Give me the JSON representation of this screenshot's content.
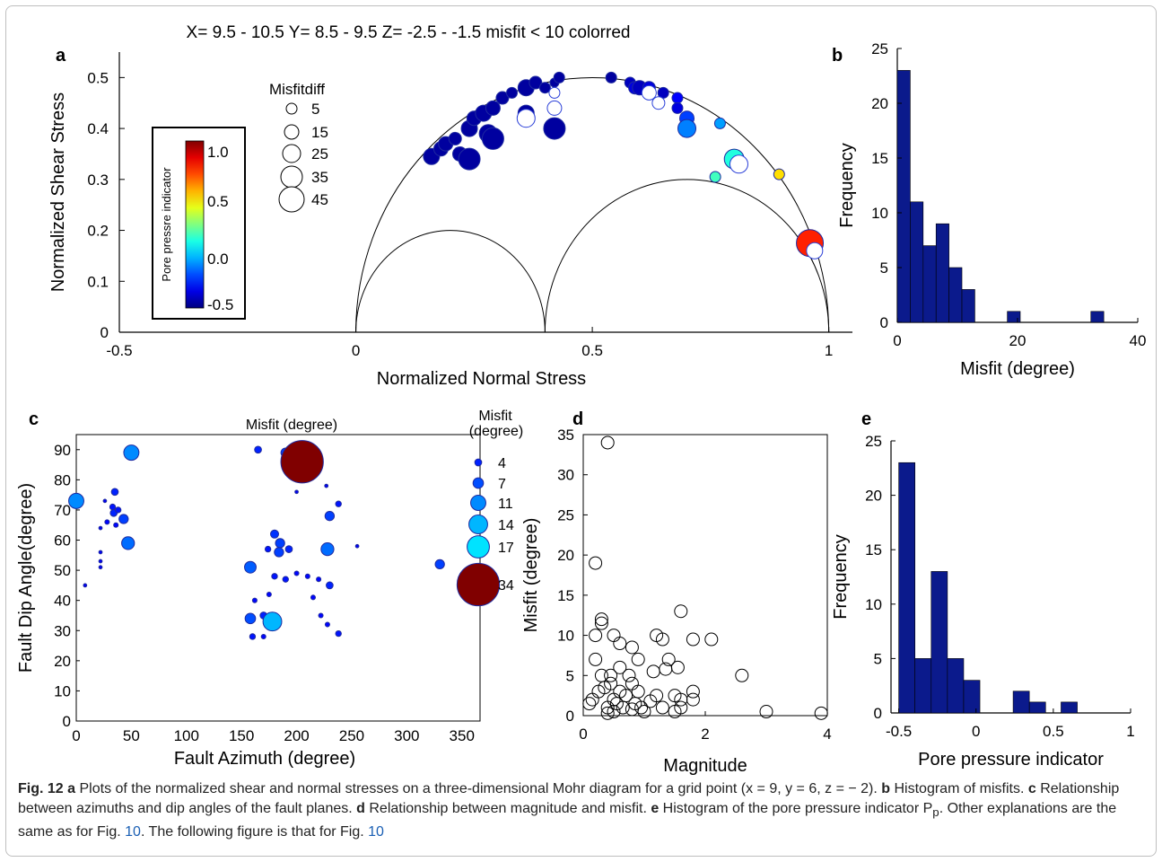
{
  "figure": {
    "header": "X= 9.5 - 10.5 Y= 8.5 - 9.5 Z= -2.5 - -1.5  misfit < 10 colorred",
    "caption": {
      "label": "Fig. 12",
      "parts": [
        {
          "b": "a",
          "t": " Plots of the normalized shear and normal stresses on a three-dimensional Mohr diagram for a grid point (x = 9, y = 6, z = − 2). "
        },
        {
          "b": "b",
          "t": " Histogram of misfits. "
        },
        {
          "b": "c",
          "t": " Relationship between azimuths and dip angles of the fault planes. "
        },
        {
          "b": "d",
          "t": " Relationship between magnitude and misfit. "
        },
        {
          "b": "e",
          "t": " Histogram of the pore pressure indicator P"
        }
      ],
      "sub": "p",
      "tail1": ". Other explanations are the same as for Fig. ",
      "ref1": "10",
      "tail2": ". The following figure is that for Fig. ",
      "ref2": "10"
    }
  },
  "chart_data": [
    {
      "panel": "a",
      "type": "scatter",
      "xlabel": "Normalized Normal Stress",
      "ylabel": "Normalized Shear Stress",
      "xlim": [
        -0.5,
        1.05
      ],
      "ylim": [
        0,
        0.55
      ],
      "xticks": [
        -0.5,
        0,
        0.5,
        1
      ],
      "xtick_labels": [
        "-0.5",
        "0",
        "0.5",
        "1"
      ],
      "yticks": [
        0,
        0.1,
        0.2,
        0.3,
        0.4,
        0.5
      ],
      "ytick_labels": [
        "0",
        "0.1",
        "0.2",
        "0.3",
        "0.4",
        "0.5"
      ],
      "circles": [
        {
          "center": 0.5,
          "radius": 0.5
        },
        {
          "center": 0.2,
          "radius": 0.2
        },
        {
          "center": 0.7,
          "radius": 0.3
        }
      ],
      "colorbar": {
        "label": "Pore pressre indicator",
        "ticks": [
          "1.0",
          "0.5",
          "0.0",
          "-0.5"
        ],
        "range": [
          -0.5,
          1.1
        ]
      },
      "size_legend": {
        "title": "Misfitdiff",
        "labels": [
          "5",
          "15",
          "25",
          "35",
          "45"
        ]
      },
      "points": [
        {
          "x": 0.16,
          "y": 0.345,
          "s": 9,
          "c": -0.45
        },
        {
          "x": 0.18,
          "y": 0.36,
          "s": 8,
          "c": -0.45
        },
        {
          "x": 0.19,
          "y": 0.37,
          "s": 8,
          "c": -0.45
        },
        {
          "x": 0.21,
          "y": 0.38,
          "s": 7,
          "c": -0.45
        },
        {
          "x": 0.22,
          "y": 0.35,
          "s": 8,
          "c": -0.45
        },
        {
          "x": 0.24,
          "y": 0.34,
          "s": 12,
          "c": -0.45
        },
        {
          "x": 0.24,
          "y": 0.4,
          "s": 9,
          "c": -0.45
        },
        {
          "x": 0.25,
          "y": 0.42,
          "s": 8,
          "c": -0.45
        },
        {
          "x": 0.27,
          "y": 0.43,
          "s": 9,
          "c": -0.45
        },
        {
          "x": 0.29,
          "y": 0.44,
          "s": 8,
          "c": -0.45
        },
        {
          "x": 0.28,
          "y": 0.39,
          "s": 10,
          "c": -0.45
        },
        {
          "x": 0.29,
          "y": 0.38,
          "s": 12,
          "c": -0.45
        },
        {
          "x": 0.31,
          "y": 0.46,
          "s": 7,
          "c": -0.45
        },
        {
          "x": 0.33,
          "y": 0.47,
          "s": 6,
          "c": -0.45
        },
        {
          "x": 0.36,
          "y": 0.48,
          "s": 9,
          "c": -0.45
        },
        {
          "x": 0.38,
          "y": 0.49,
          "s": 7,
          "c": -0.45
        },
        {
          "x": 0.36,
          "y": 0.43,
          "s": 9,
          "c": -0.45
        },
        {
          "x": 0.36,
          "y": 0.42,
          "s": 10,
          "c": -0.45,
          "o": true
        },
        {
          "x": 0.4,
          "y": 0.48,
          "s": 6,
          "c": -0.45
        },
        {
          "x": 0.42,
          "y": 0.49,
          "s": 5,
          "c": -0.45
        },
        {
          "x": 0.42,
          "y": 0.47,
          "s": 6,
          "c": -0.45,
          "o": true
        },
        {
          "x": 0.43,
          "y": 0.5,
          "s": 6,
          "c": -0.45
        },
        {
          "x": 0.42,
          "y": 0.44,
          "s": 8,
          "c": -0.45,
          "o": true
        },
        {
          "x": 0.42,
          "y": 0.4,
          "s": 12,
          "c": -0.45
        },
        {
          "x": 0.54,
          "y": 0.5,
          "s": 6,
          "c": -0.45
        },
        {
          "x": 0.58,
          "y": 0.49,
          "s": 6,
          "c": -0.4
        },
        {
          "x": 0.59,
          "y": 0.48,
          "s": 7,
          "c": -0.35
        },
        {
          "x": 0.6,
          "y": 0.48,
          "s": 8,
          "c": -0.4
        },
        {
          "x": 0.62,
          "y": 0.48,
          "s": 7,
          "c": -0.35
        },
        {
          "x": 0.62,
          "y": 0.47,
          "s": 8,
          "c": -0.35,
          "o": true
        },
        {
          "x": 0.65,
          "y": 0.47,
          "s": 6,
          "c": -0.4
        },
        {
          "x": 0.64,
          "y": 0.45,
          "s": 7,
          "c": -0.3,
          "o": true
        },
        {
          "x": 0.68,
          "y": 0.46,
          "s": 6,
          "c": -0.3
        },
        {
          "x": 0.68,
          "y": 0.44,
          "s": 6,
          "c": -0.35
        },
        {
          "x": 0.7,
          "y": 0.42,
          "s": 8,
          "c": -0.2
        },
        {
          "x": 0.7,
          "y": 0.4,
          "s": 10,
          "c": -0.1
        },
        {
          "x": 0.77,
          "y": 0.41,
          "s": 6,
          "c": -0.05
        },
        {
          "x": 0.8,
          "y": 0.34,
          "s": 11,
          "c": 0.15
        },
        {
          "x": 0.81,
          "y": 0.33,
          "s": 10,
          "c": 0.15,
          "o": true
        },
        {
          "x": 0.76,
          "y": 0.305,
          "s": 6,
          "c": 0.2
        },
        {
          "x": 0.895,
          "y": 0.31,
          "s": 6,
          "c": 0.55
        },
        {
          "x": 0.96,
          "y": 0.175,
          "s": 15,
          "c": 0.85
        },
        {
          "x": 0.97,
          "y": 0.16,
          "s": 9,
          "c": 0.7,
          "o": true
        }
      ]
    },
    {
      "panel": "b",
      "type": "bar",
      "xlabel": "Misfit (degree)",
      "ylabel": "Frequency",
      "xlim": [
        0,
        40
      ],
      "ylim": [
        0,
        25
      ],
      "xtick_labels": [
        "0",
        "20",
        "40"
      ],
      "ytick_labels": [
        "0",
        "5",
        "10",
        "15",
        "20",
        "25"
      ],
      "bin_width": 2.15,
      "bins": [
        0,
        2.15,
        4.3,
        6.45,
        8.6,
        10.75,
        18.3,
        32.2
      ],
      "values": [
        23,
        11,
        7,
        9,
        5,
        3,
        1,
        1
      ]
    },
    {
      "panel": "c",
      "type": "scatter",
      "title": "Misfit (degree)",
      "xlabel": "Fault Azimuth (degree)",
      "ylabel": "Fault Dip Angle(degree)",
      "xlim": [
        0,
        360
      ],
      "ylim": [
        0,
        95
      ],
      "xtick_labels": [
        "0",
        "50",
        "100",
        "150",
        "200",
        "250",
        "300",
        "350"
      ],
      "yticks": [
        0,
        10,
        20,
        30,
        40,
        50,
        60,
        70,
        80,
        90
      ],
      "ytick_labels": [
        "0",
        "10",
        "20",
        "30",
        "40",
        "50",
        "60",
        "70",
        "80",
        "90"
      ],
      "size_legend": {
        "title": "Misfit\n(degree)",
        "labels": [
          "4",
          "7",
          "11",
          "14",
          "17",
          "34"
        ],
        "values": [
          4,
          7,
          11,
          14,
          17,
          34
        ]
      },
      "points": [
        {
          "x": 0,
          "y": 73,
          "m": 11
        },
        {
          "x": 50,
          "y": 89,
          "m": 11
        },
        {
          "x": 47,
          "y": 59,
          "m": 9
        },
        {
          "x": 43,
          "y": 67,
          "m": 6
        },
        {
          "x": 35,
          "y": 76,
          "m": 4
        },
        {
          "x": 33,
          "y": 71,
          "m": 3
        },
        {
          "x": 34,
          "y": 69,
          "m": 4
        },
        {
          "x": 38,
          "y": 70,
          "m": 3
        },
        {
          "x": 36,
          "y": 65,
          "m": 2
        },
        {
          "x": 28,
          "y": 66,
          "m": 2
        },
        {
          "x": 22,
          "y": 64,
          "m": 1
        },
        {
          "x": 22,
          "y": 56,
          "m": 1
        },
        {
          "x": 22,
          "y": 53,
          "m": 1
        },
        {
          "x": 22,
          "y": 51,
          "m": 1
        },
        {
          "x": 8,
          "y": 45,
          "m": 1
        },
        {
          "x": 26,
          "y": 73,
          "m": 1
        },
        {
          "x": 165,
          "y": 90,
          "m": 4
        },
        {
          "x": 190,
          "y": 89,
          "m": 6
        },
        {
          "x": 205,
          "y": 86,
          "m": 34
        },
        {
          "x": 200,
          "y": 76,
          "m": 1
        },
        {
          "x": 227,
          "y": 78,
          "m": 1
        },
        {
          "x": 238,
          "y": 72,
          "m": 3
        },
        {
          "x": 230,
          "y": 68,
          "m": 6
        },
        {
          "x": 228,
          "y": 57,
          "m": 9
        },
        {
          "x": 255,
          "y": 58,
          "m": 1
        },
        {
          "x": 180,
          "y": 62,
          "m": 5
        },
        {
          "x": 185,
          "y": 59,
          "m": 6
        },
        {
          "x": 184,
          "y": 56,
          "m": 6
        },
        {
          "x": 193,
          "y": 57,
          "m": 4
        },
        {
          "x": 174,
          "y": 57,
          "m": 3
        },
        {
          "x": 158,
          "y": 51,
          "m": 8
        },
        {
          "x": 180,
          "y": 48,
          "m": 3
        },
        {
          "x": 190,
          "y": 47,
          "m": 3
        },
        {
          "x": 200,
          "y": 49,
          "m": 2
        },
        {
          "x": 210,
          "y": 48,
          "m": 2
        },
        {
          "x": 220,
          "y": 47,
          "m": 2
        },
        {
          "x": 230,
          "y": 45,
          "m": 4
        },
        {
          "x": 175,
          "y": 42,
          "m": 2
        },
        {
          "x": 162,
          "y": 40,
          "m": 2
        },
        {
          "x": 158,
          "y": 34,
          "m": 7
        },
        {
          "x": 170,
          "y": 35,
          "m": 4
        },
        {
          "x": 177,
          "y": 34,
          "m": 4
        },
        {
          "x": 178,
          "y": 33,
          "m": 14
        },
        {
          "x": 160,
          "y": 28,
          "m": 3
        },
        {
          "x": 170,
          "y": 28,
          "m": 2
        },
        {
          "x": 222,
          "y": 35,
          "m": 2
        },
        {
          "x": 228,
          "y": 32,
          "m": 2
        },
        {
          "x": 238,
          "y": 29,
          "m": 3
        },
        {
          "x": 215,
          "y": 41,
          "m": 2
        },
        {
          "x": 330,
          "y": 52,
          "m": 6
        }
      ]
    },
    {
      "panel": "d",
      "type": "scatter",
      "xlabel": "Magnitude",
      "ylabel": "Misfit (degree)",
      "xlim": [
        0,
        4
      ],
      "ylim": [
        0,
        35
      ],
      "xtick_labels": [
        "0",
        "2",
        "4"
      ],
      "ytick_labels": [
        "0",
        "5",
        "10",
        "15",
        "20",
        "25",
        "30",
        "35"
      ],
      "points": [
        [
          0.4,
          34
        ],
        [
          0.2,
          19
        ],
        [
          0.3,
          12
        ],
        [
          0.3,
          11.5
        ],
        [
          0.2,
          10
        ],
        [
          0.5,
          10
        ],
        [
          0.6,
          9
        ],
        [
          0.8,
          8.5
        ],
        [
          0.9,
          7
        ],
        [
          1.2,
          10
        ],
        [
          1.3,
          9.5
        ],
        [
          1.6,
          13
        ],
        [
          1.8,
          9.5
        ],
        [
          2.1,
          9.5
        ],
        [
          2.6,
          5
        ],
        [
          3.0,
          0.5
        ],
        [
          3.9,
          0.3
        ],
        [
          0.1,
          1.5
        ],
        [
          0.15,
          2
        ],
        [
          0.2,
          7
        ],
        [
          0.25,
          3
        ],
        [
          0.3,
          5
        ],
        [
          0.35,
          3.5
        ],
        [
          0.4,
          1
        ],
        [
          0.4,
          0.3
        ],
        [
          0.45,
          5
        ],
        [
          0.45,
          4
        ],
        [
          0.5,
          2
        ],
        [
          0.5,
          0.5
        ],
        [
          0.55,
          1.5
        ],
        [
          0.6,
          3
        ],
        [
          0.6,
          6
        ],
        [
          0.65,
          1
        ],
        [
          0.7,
          2.5
        ],
        [
          0.75,
          5
        ],
        [
          0.8,
          4
        ],
        [
          0.8,
          0.8
        ],
        [
          0.85,
          1.5
        ],
        [
          0.9,
          3
        ],
        [
          0.95,
          1
        ],
        [
          1.0,
          0.5
        ],
        [
          1.1,
          1.8
        ],
        [
          1.15,
          5.5
        ],
        [
          1.2,
          2.5
        ],
        [
          1.3,
          1
        ],
        [
          1.35,
          5.8
        ],
        [
          1.4,
          7
        ],
        [
          1.5,
          2.5
        ],
        [
          1.5,
          0.5
        ],
        [
          1.55,
          6
        ],
        [
          1.6,
          2
        ],
        [
          1.6,
          1
        ],
        [
          1.8,
          2
        ],
        [
          1.8,
          3
        ]
      ]
    },
    {
      "panel": "e",
      "type": "bar",
      "xlabel": "Pore pressure indicator",
      "ylabel": "Frequency",
      "xlim": [
        -0.55,
        1
      ],
      "ylim": [
        0,
        25
      ],
      "xtick_labels": [
        "-0.5",
        "0",
        "0.5",
        "1"
      ],
      "ytick_labels": [
        "0",
        "5",
        "10",
        "15",
        "20",
        "25"
      ],
      "bin_width": 0.105,
      "bins": [
        -0.5,
        -0.395,
        -0.29,
        -0.185,
        -0.08,
        0.025,
        0.24,
        0.345,
        0.55
      ],
      "values": [
        23,
        5,
        13,
        5,
        3,
        0,
        2,
        1,
        1
      ]
    }
  ]
}
